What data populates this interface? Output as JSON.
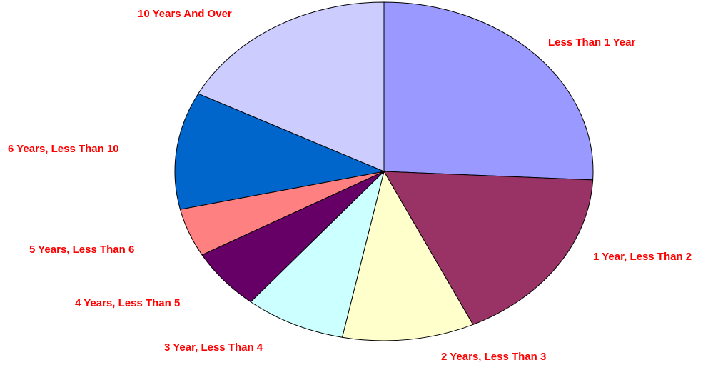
{
  "chart_data": {
    "type": "pie",
    "title": "",
    "start_angle_deg": 0,
    "direction": "clockwise",
    "label_color": "#ff0000",
    "slice_border_color": "#000000",
    "slices": [
      {
        "label": "Less Than 1 Year",
        "value": 25.8,
        "color": "#9999ff"
      },
      {
        "label": "1 Year, Less Than 2",
        "value": 17.2,
        "color": "#993366"
      },
      {
        "label": "2 Years, Less Than 3",
        "value": 10.2,
        "color": "#ffffcc"
      },
      {
        "label": "3 Year, Less Than 4",
        "value": 7.8,
        "color": "#ccffff"
      },
      {
        "label": "4 Years, Less Than 5",
        "value": 5.8,
        "color": "#660066"
      },
      {
        "label": "5 Years, Less Than 6",
        "value": 4.6,
        "color": "#ff8080"
      },
      {
        "label": "6 Years, Less Than 10",
        "value": 11.2,
        "color": "#0066cc"
      },
      {
        "label": "10 Years And Over",
        "value": 17.4,
        "color": "#ccccff"
      }
    ]
  }
}
